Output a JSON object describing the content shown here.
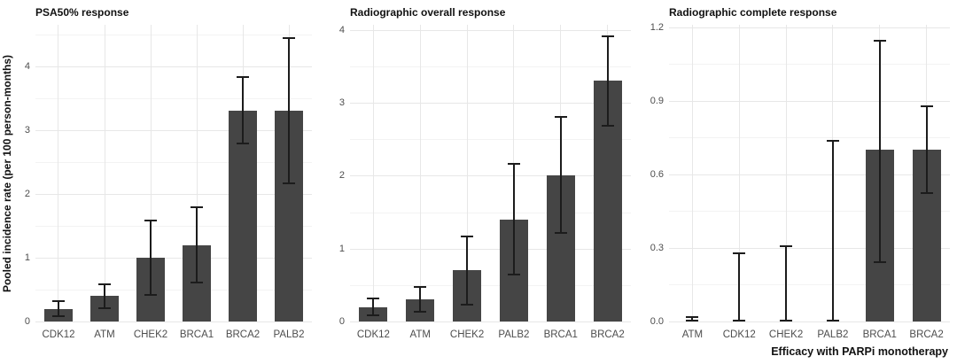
{
  "figure": {
    "background": "#ffffff",
    "bar_color": "#454545",
    "error_bar_color": "#1c1c1c",
    "grid_major_color": "#e7e7e7",
    "grid_minor_color": "#f3f3f3",
    "tick_label_color": "#4d4d4d",
    "title_color": "#111111"
  },
  "chart_data": [
    {
      "type": "bar",
      "title": "PSA50% response",
      "ylabel": "Pooled incidence rate (per 100 person-months)",
      "xlabel": "",
      "categories": [
        "CDK12",
        "ATM",
        "CHEK2",
        "BRCA1",
        "BRCA2",
        "PALB2"
      ],
      "values": [
        0.2,
        0.4,
        1.0,
        1.2,
        3.3,
        3.3
      ],
      "ci_low": [
        0.07,
        0.2,
        0.4,
        0.6,
        2.78,
        2.15
      ],
      "ci_high": [
        0.33,
        0.6,
        1.6,
        1.8,
        3.85,
        4.45
      ],
      "yticks": [
        0,
        1,
        2,
        3,
        4
      ],
      "ytick_labels": [
        "0",
        "1",
        "2",
        "3",
        "4"
      ],
      "ylim": [
        0,
        4.65
      ],
      "grid": true,
      "legend": "none"
    },
    {
      "type": "bar",
      "title": "Radiographic overall response",
      "ylabel": "",
      "xlabel": "",
      "categories": [
        "CDK12",
        "ATM",
        "CHEK2",
        "PALB2",
        "BRCA1",
        "BRCA2"
      ],
      "values": [
        0.2,
        0.3,
        0.7,
        1.4,
        2.0,
        3.3
      ],
      "ci_low": [
        0.07,
        0.12,
        0.22,
        0.63,
        1.2,
        2.67
      ],
      "ci_high": [
        0.33,
        0.48,
        1.18,
        2.17,
        2.82,
        3.93
      ],
      "yticks": [
        0,
        1,
        2,
        3,
        4
      ],
      "ytick_labels": [
        "0",
        "1",
        "2",
        "3",
        "4"
      ],
      "ylim": [
        0,
        4.07
      ],
      "grid": true,
      "legend": "none"
    },
    {
      "type": "bar",
      "title": "Radiographic complete response",
      "ylabel": "",
      "xlabel": "Efficacy with PARPi monotherapy",
      "categories": [
        "ATM",
        "CDK12",
        "CHEK2",
        "PALB2",
        "BRCA1",
        "BRCA2"
      ],
      "values": [
        0,
        0,
        0,
        0,
        0.7,
        0.7
      ],
      "ci_low": [
        0,
        0,
        0,
        0,
        0.24,
        0.52
      ],
      "ci_high": [
        0.02,
        0.28,
        0.31,
        0.74,
        1.15,
        0.88
      ],
      "yticks": [
        0,
        0.3,
        0.6,
        0.9,
        1.2
      ],
      "ytick_labels": [
        "0.0",
        "0.3",
        "0.6",
        "0.9",
        "1.2"
      ],
      "ylim": [
        0,
        1.21
      ],
      "grid": true,
      "legend": "none"
    }
  ]
}
